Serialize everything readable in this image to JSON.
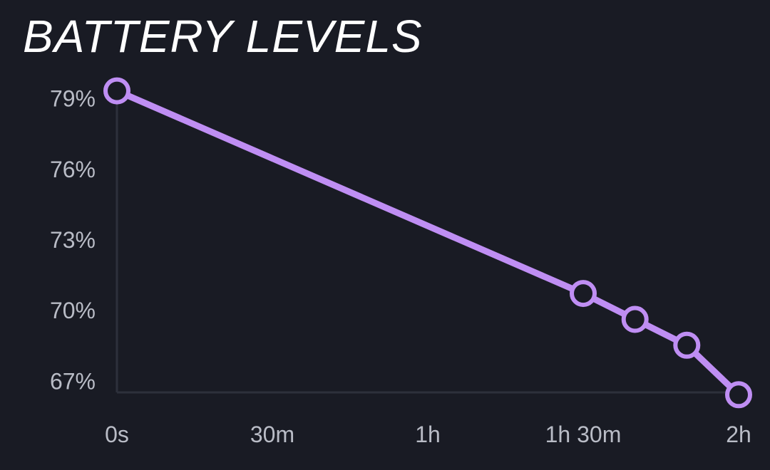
{
  "chart_data": {
    "type": "line",
    "title": "BATTERY LEVELS",
    "xlabel": "",
    "ylabel": "",
    "x_unit": "minutes",
    "y_unit": "percent",
    "xlim": [
      0,
      120
    ],
    "ylim": [
      66.5,
      79.5
    ],
    "x_ticks": [
      {
        "value": 0,
        "label": "0s"
      },
      {
        "value": 30,
        "label": "30m"
      },
      {
        "value": 60,
        "label": "1h"
      },
      {
        "value": 90,
        "label": "1h 30m"
      },
      {
        "value": 120,
        "label": "2h"
      }
    ],
    "y_ticks": [
      {
        "value": 67,
        "label": "67%"
      },
      {
        "value": 70,
        "label": "70%"
      },
      {
        "value": 73,
        "label": "73%"
      },
      {
        "value": 76,
        "label": "76%"
      },
      {
        "value": 79,
        "label": "79%"
      }
    ],
    "series": [
      {
        "color": "#bf8ef3",
        "x": [
          0,
          90,
          100,
          110,
          120
        ],
        "y": [
          79.3,
          70.7,
          69.6,
          68.5,
          66.4
        ]
      }
    ],
    "grid": false,
    "legend": "none"
  },
  "colors": {
    "background": "#191b24",
    "series": "#bf8ef3",
    "tick_text": "#b9bcc6",
    "title_text": "#ffffff",
    "axis": "#2d303b"
  }
}
